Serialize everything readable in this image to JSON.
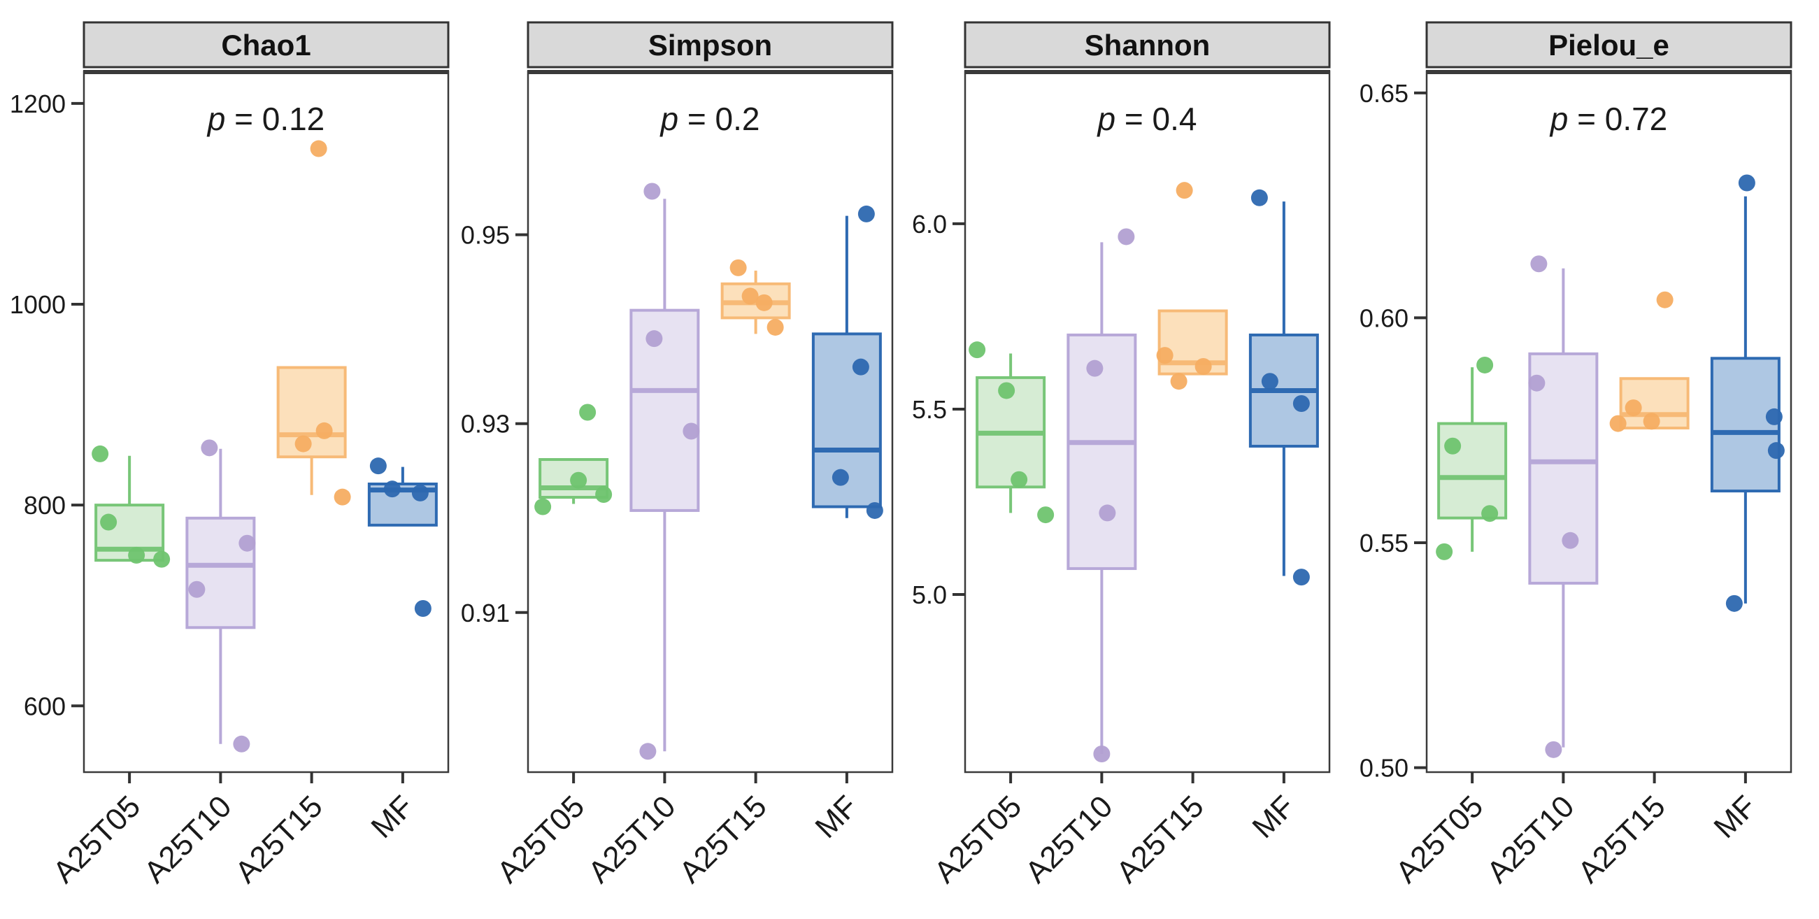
{
  "figure": {
    "background": "#ffffff",
    "strip_fill": "#d9d9d9",
    "strip_border": "#333333",
    "panel_border": "#3a3a3a",
    "text_color": "#1a1a1a",
    "tick_color": "#333333"
  },
  "chart_data": {
    "type": "boxplot",
    "layout_hint": "4 faceted panels, free y scales, grid off, no legend, jittered points overlaid",
    "categories": [
      "A25T05",
      "A25T10",
      "A25T15",
      "MF"
    ],
    "groups": [
      {
        "label": "A25T05",
        "stroke": "#78c678",
        "fill": "#d6ecd4",
        "dot": "#6fc46f"
      },
      {
        "label": "A25T10",
        "stroke": "#b7a8d8",
        "fill": "#e7e2f2",
        "dot": "#b2a0d2"
      },
      {
        "label": "A25T15",
        "stroke": "#f7ba77",
        "fill": "#fce0bb",
        "dot": "#f6ad62"
      },
      {
        "label": "MF",
        "stroke": "#2e6ab2",
        "fill": "#aec7e3",
        "dot": "#2d68b0"
      }
    ],
    "panels": [
      {
        "title": "Chao1",
        "p_label": "p = 0.12",
        "ylim": [
          534,
          1232
        ],
        "tick_values": [
          600,
          800,
          1000,
          1200
        ],
        "tick_labels": [
          "600",
          "800",
          "1000",
          "1200"
        ],
        "boxes": [
          {
            "group": "A25T05",
            "whisker_low": null,
            "q1": 745,
            "median": 756,
            "q3": 800,
            "whisker_high": 849,
            "points": [
              [
                851,
                -42
              ],
              [
                783,
                -30
              ],
              [
                750,
                10
              ],
              [
                746,
                46
              ]
            ]
          },
          {
            "group": "A25T10",
            "whisker_low": 562,
            "q1": 678,
            "median": 740,
            "q3": 787,
            "whisker_high": 856,
            "points": [
              [
                857,
                -16
              ],
              [
                762,
                38
              ],
              [
                716,
                -34
              ],
              [
                562,
                30
              ]
            ]
          },
          {
            "group": "A25T15",
            "whisker_low": 810,
            "q1": 848,
            "median": 870,
            "q3": 937,
            "whisker_high": null,
            "points": [
              [
                1155,
                10
              ],
              [
                874,
                18
              ],
              [
                861,
                -12
              ],
              [
                808,
                44
              ]
            ]
          },
          {
            "group": "MF",
            "whisker_low": null,
            "q1": 780,
            "median": 815,
            "q3": 821,
            "whisker_high": 838,
            "points": [
              [
                839,
                -35
              ],
              [
                816,
                -15
              ],
              [
                812,
                25
              ],
              [
                697,
                29
              ]
            ]
          }
        ]
      },
      {
        "title": "Simpson",
        "p_label": "p = 0.2",
        "ylim": [
          0.8931,
          0.9673
        ],
        "tick_values": [
          0.91,
          0.93,
          0.95
        ],
        "tick_labels": [
          "0.91",
          "0.93",
          "0.95"
        ],
        "boxes": [
          {
            "group": "A25T05",
            "whisker_low": 0.9215,
            "q1": 0.9222,
            "median": 0.9232,
            "q3": 0.9262,
            "whisker_high": null,
            "points": [
              [
                0.9312,
                20
              ],
              [
                0.924,
                7
              ],
              [
                0.9225,
                43
              ],
              [
                0.9212,
                -44
              ]
            ]
          },
          {
            "group": "A25T10",
            "whisker_low": 0.8953,
            "q1": 0.9208,
            "median": 0.9335,
            "q3": 0.942,
            "whisker_high": 0.9538,
            "points": [
              [
                0.9546,
                -18
              ],
              [
                0.939,
                -15
              ],
              [
                0.9292,
                38
              ],
              [
                0.8953,
                -24
              ]
            ]
          },
          {
            "group": "A25T15",
            "whisker_low": 0.9395,
            "q1": 0.9412,
            "median": 0.9428,
            "q3": 0.9448,
            "whisker_high": 0.9462,
            "points": [
              [
                0.9465,
                -25
              ],
              [
                0.9435,
                -8
              ],
              [
                0.9428,
                12
              ],
              [
                0.9402,
                28
              ]
            ]
          },
          {
            "group": "MF",
            "whisker_low": 0.92,
            "q1": 0.9212,
            "median": 0.9272,
            "q3": 0.9395,
            "whisker_high": 0.952,
            "points": [
              [
                0.9522,
                28
              ],
              [
                0.936,
                20
              ],
              [
                0.9243,
                -9
              ],
              [
                0.9208,
                40
              ]
            ]
          }
        ]
      },
      {
        "title": "Shannon",
        "p_label": "p = 0.4",
        "ylim": [
          4.521,
          6.411
        ],
        "tick_values": [
          5.0,
          5.5,
          6.0
        ],
        "tick_labels": [
          "5.0",
          "5.5",
          "6.0"
        ],
        "boxes": [
          {
            "group": "A25T05",
            "whisker_low": 5.22,
            "q1": 5.29,
            "median": 5.435,
            "q3": 5.585,
            "whisker_high": 5.65,
            "points": [
              [
                5.66,
                -48
              ],
              [
                5.55,
                -6
              ],
              [
                5.31,
                12
              ],
              [
                5.215,
                50
              ]
            ]
          },
          {
            "group": "A25T10",
            "whisker_low": 4.57,
            "q1": 5.07,
            "median": 5.41,
            "q3": 5.7,
            "whisker_high": 5.95,
            "points": [
              [
                5.965,
                35
              ],
              [
                5.61,
                -10
              ],
              [
                5.22,
                8
              ],
              [
                4.57,
                0
              ]
            ]
          },
          {
            "group": "A25T15",
            "whisker_low": null,
            "q1": 5.595,
            "median": 5.625,
            "q3": 5.765,
            "whisker_high": null,
            "points": [
              [
                6.09,
                -12
              ],
              [
                5.645,
                -40
              ],
              [
                5.615,
                15
              ],
              [
                5.575,
                -20
              ]
            ]
          },
          {
            "group": "MF",
            "whisker_low": 5.05,
            "q1": 5.4,
            "median": 5.55,
            "q3": 5.7,
            "whisker_high": 6.06,
            "points": [
              [
                6.07,
                -35
              ],
              [
                5.575,
                -20
              ],
              [
                5.515,
                25
              ],
              [
                5.047,
                25
              ]
            ]
          }
        ]
      },
      {
        "title": "Pielou_e",
        "p_label": "p = 0.72",
        "ylim": [
          0.499,
          0.6548
        ],
        "tick_values": [
          0.5,
          0.55,
          0.6,
          0.65
        ],
        "tick_labels": [
          "0.50",
          "0.55",
          "0.60",
          "0.65"
        ],
        "boxes": [
          {
            "group": "A25T05",
            "whisker_low": 0.548,
            "q1": 0.5555,
            "median": 0.5645,
            "q3": 0.5765,
            "whisker_high": 0.589,
            "points": [
              [
                0.5895,
                18
              ],
              [
                0.5715,
                -28
              ],
              [
                0.5565,
                25
              ],
              [
                0.548,
                -40
              ]
            ]
          },
          {
            "group": "A25T10",
            "whisker_low": 0.5045,
            "q1": 0.541,
            "median": 0.568,
            "q3": 0.592,
            "whisker_high": 0.611,
            "points": [
              [
                0.612,
                -35
              ],
              [
                0.5855,
                -38
              ],
              [
                0.5505,
                10
              ],
              [
                0.504,
                -14
              ]
            ]
          },
          {
            "group": "A25T15",
            "whisker_low": null,
            "q1": 0.5755,
            "median": 0.5785,
            "q3": 0.5865,
            "whisker_high": null,
            "points": [
              [
                0.604,
                15
              ],
              [
                0.58,
                -30
              ],
              [
                0.5765,
                -52
              ],
              [
                0.577,
                -4
              ]
            ]
          },
          {
            "group": "MF",
            "whisker_low": 0.5365,
            "q1": 0.5615,
            "median": 0.5745,
            "q3": 0.591,
            "whisker_high": 0.627,
            "points": [
              [
                0.63,
                2
              ],
              [
                0.578,
                41
              ],
              [
                0.5705,
                44
              ],
              [
                0.5365,
                -16
              ]
            ]
          }
        ]
      }
    ]
  }
}
